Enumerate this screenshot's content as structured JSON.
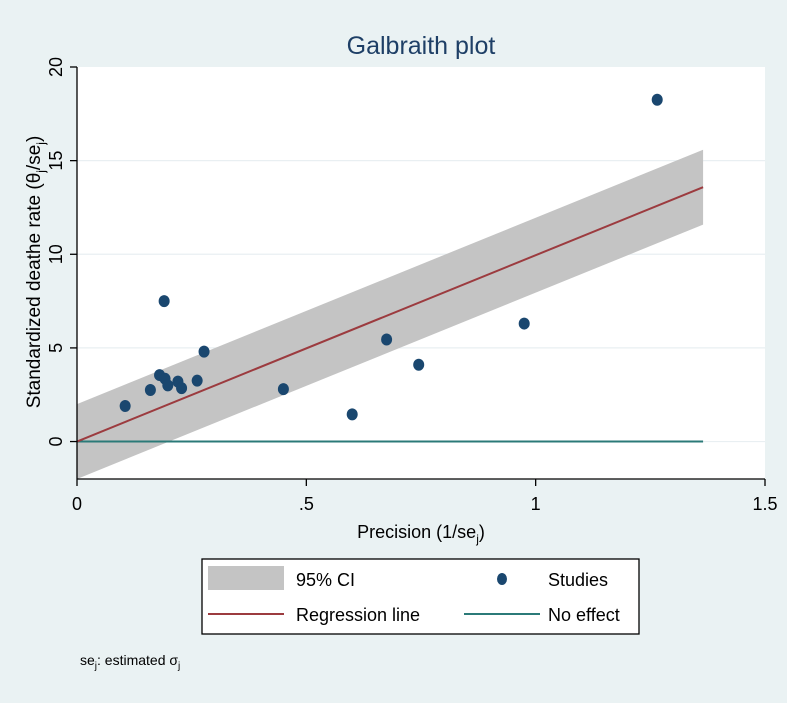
{
  "chart_data": {
    "type": "scatter",
    "title": "Galbraith plot",
    "xlabel": "Precision (1/se",
    "xlabel_sub": "j",
    "xlabel_tail": ")",
    "ylabel_main": "Standardized deathe rate (θ",
    "ylabel_sub1": "j",
    "ylabel_mid": "/se",
    "ylabel_sub2": "j",
    "ylabel_tail": ")",
    "xlim": [
      0,
      1.5
    ],
    "ylim": [
      -2,
      20
    ],
    "x_ticks": [
      {
        "value": 0,
        "label": "0"
      },
      {
        "value": 0.5,
        "label": ".5"
      },
      {
        "value": 1,
        "label": "1"
      },
      {
        "value": 1.5,
        "label": "1.5"
      }
    ],
    "y_ticks": [
      {
        "value": 0,
        "label": "0"
      },
      {
        "value": 5,
        "label": "5"
      },
      {
        "value": 10,
        "label": "10"
      },
      {
        "value": 15,
        "label": "15"
      },
      {
        "value": 20,
        "label": "20"
      }
    ],
    "studies": [
      {
        "x": 0.105,
        "y": 1.9
      },
      {
        "x": 0.16,
        "y": 2.75
      },
      {
        "x": 0.18,
        "y": 3.55
      },
      {
        "x": 0.19,
        "y": 7.5
      },
      {
        "x": 0.192,
        "y": 3.35
      },
      {
        "x": 0.198,
        "y": 3.0
      },
      {
        "x": 0.22,
        "y": 3.2
      },
      {
        "x": 0.228,
        "y": 2.85
      },
      {
        "x": 0.262,
        "y": 3.25
      },
      {
        "x": 0.277,
        "y": 4.8
      },
      {
        "x": 0.45,
        "y": 2.8
      },
      {
        "x": 0.6,
        "y": 1.45
      },
      {
        "x": 0.675,
        "y": 5.45
      },
      {
        "x": 0.745,
        "y": 4.1
      },
      {
        "x": 0.975,
        "y": 6.3
      },
      {
        "x": 1.265,
        "y": 18.25
      }
    ],
    "regression": {
      "slope": 9.95,
      "intercept": 0.0,
      "x_max": 1.365
    },
    "ci_halfwidth": 2.0,
    "no_effect_y": 0,
    "legend": [
      {
        "key": "ci",
        "label": "95% CI"
      },
      {
        "key": "studies",
        "label": "Studies"
      },
      {
        "key": "regression",
        "label": "Regression line"
      },
      {
        "key": "noeffect",
        "label": "No effect"
      }
    ],
    "note_prefix": "se",
    "note_sub": "j",
    "note_text": ": estimated σ",
    "note_sub2": "j"
  },
  "colors": {
    "background": "#eaf2f3",
    "plot_bg": "#ffffff",
    "ci_band": "#c4c4c4",
    "regression": "#9c3b3f",
    "no_effect": "#2b7a78",
    "marker": "#1a476f",
    "title": "#1e3f66",
    "grid": "#e9eff2",
    "axis": "#000000"
  }
}
